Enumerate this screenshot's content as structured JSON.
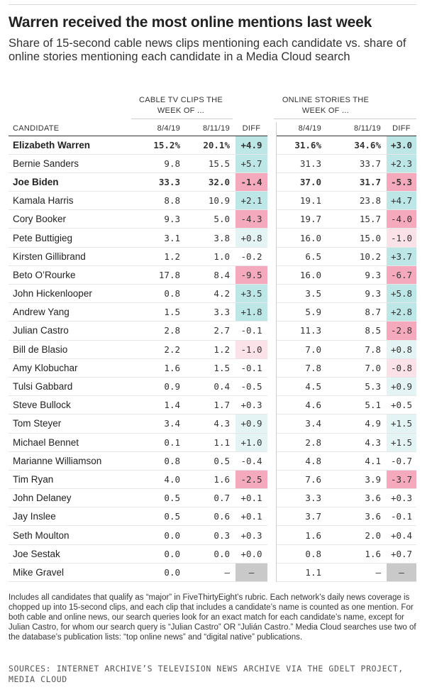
{
  "title": "Warren received the most online mentions last week",
  "subtitle": "Share of 15-second cable news clips mentioning each candidate vs. share of online stories mentioning each candidate in a Media Cloud search",
  "groups": {
    "cable": "CABLE TV CLIPS THE WEEK OF ...",
    "online": "ONLINE STORIES THE WEEK OF ..."
  },
  "columns": {
    "candidate": "CANDIDATE",
    "w1": "8/4/19",
    "w2": "8/11/19",
    "diff": "DIFF"
  },
  "colors": {
    "pos_strong": "#bde6e6",
    "pos_light": "#e4f4f4",
    "neg_strong": "#f4a9bd",
    "neg_light": "#fbe1e8",
    "na": "#c9c9c9"
  },
  "chart_data": {
    "type": "table",
    "rows": [
      {
        "name": "Elizabeth Warren",
        "bold": true,
        "cable": [
          "15.2%",
          "20.1%",
          "+4.9"
        ],
        "online": [
          "31.6%",
          "34.6%",
          "+3.0"
        ]
      },
      {
        "name": "Bernie Sanders",
        "bold": false,
        "cable": [
          "9.8",
          "15.5",
          "+5.7"
        ],
        "online": [
          "31.3",
          "33.7",
          "+2.3"
        ]
      },
      {
        "name": "Joe Biden",
        "bold": true,
        "cable": [
          "33.3",
          "32.0",
          "-1.4"
        ],
        "online": [
          "37.0",
          "31.7",
          "-5.3"
        ]
      },
      {
        "name": "Kamala Harris",
        "bold": false,
        "cable": [
          "8.8",
          "10.9",
          "+2.1"
        ],
        "online": [
          "19.1",
          "23.8",
          "+4.7"
        ]
      },
      {
        "name": "Cory Booker",
        "bold": false,
        "cable": [
          "9.3",
          "5.0",
          "-4.3"
        ],
        "online": [
          "19.7",
          "15.7",
          "-4.0"
        ]
      },
      {
        "name": "Pete Buttigieg",
        "bold": false,
        "cable": [
          "3.1",
          "3.8",
          "+0.8"
        ],
        "online": [
          "16.0",
          "15.0",
          "-1.0"
        ]
      },
      {
        "name": "Kirsten Gillibrand",
        "bold": false,
        "cable": [
          "1.2",
          "1.0",
          "-0.2"
        ],
        "online": [
          "6.5",
          "10.2",
          "+3.7"
        ]
      },
      {
        "name": "Beto O’Rourke",
        "bold": false,
        "cable": [
          "17.8",
          "8.4",
          "-9.5"
        ],
        "online": [
          "16.0",
          "9.3",
          "-6.7"
        ]
      },
      {
        "name": "John Hickenlooper",
        "bold": false,
        "cable": [
          "0.8",
          "4.2",
          "+3.5"
        ],
        "online": [
          "3.5",
          "9.3",
          "+5.8"
        ]
      },
      {
        "name": "Andrew Yang",
        "bold": false,
        "cable": [
          "1.5",
          "3.3",
          "+1.8"
        ],
        "online": [
          "5.9",
          "8.7",
          "+2.8"
        ]
      },
      {
        "name": "Julian Castro",
        "bold": false,
        "cable": [
          "2.8",
          "2.7",
          "-0.1"
        ],
        "online": [
          "11.3",
          "8.5",
          "-2.8"
        ]
      },
      {
        "name": "Bill de Blasio",
        "bold": false,
        "cable": [
          "2.2",
          "1.2",
          "-1.0"
        ],
        "online": [
          "7.0",
          "7.8",
          "+0.8"
        ]
      },
      {
        "name": "Amy Klobuchar",
        "bold": false,
        "cable": [
          "1.6",
          "1.5",
          "-0.1"
        ],
        "online": [
          "7.8",
          "7.0",
          "-0.8"
        ]
      },
      {
        "name": "Tulsi Gabbard",
        "bold": false,
        "cable": [
          "0.9",
          "0.4",
          "-0.5"
        ],
        "online": [
          "4.5",
          "5.3",
          "+0.9"
        ]
      },
      {
        "name": "Steve Bullock",
        "bold": false,
        "cable": [
          "1.4",
          "1.7",
          "+0.3"
        ],
        "online": [
          "4.6",
          "5.1",
          "+0.5"
        ]
      },
      {
        "name": "Tom Steyer",
        "bold": false,
        "cable": [
          "3.4",
          "4.3",
          "+0.9"
        ],
        "online": [
          "3.4",
          "4.9",
          "+1.5"
        ]
      },
      {
        "name": "Michael Bennet",
        "bold": false,
        "cable": [
          "0.1",
          "1.1",
          "+1.0"
        ],
        "online": [
          "2.8",
          "4.3",
          "+1.5"
        ]
      },
      {
        "name": "Marianne Williamson",
        "bold": false,
        "cable": [
          "0.8",
          "0.5",
          "-0.4"
        ],
        "online": [
          "4.8",
          "4.1",
          "-0.7"
        ]
      },
      {
        "name": "Tim Ryan",
        "bold": false,
        "cable": [
          "4.0",
          "1.6",
          "-2.5"
        ],
        "online": [
          "7.6",
          "3.9",
          "-3.7"
        ]
      },
      {
        "name": "John Delaney",
        "bold": false,
        "cable": [
          "0.5",
          "0.7",
          "+0.1"
        ],
        "online": [
          "3.3",
          "3.6",
          "+0.3"
        ]
      },
      {
        "name": "Jay Inslee",
        "bold": false,
        "cable": [
          "0.5",
          "0.6",
          "+0.1"
        ],
        "online": [
          "3.7",
          "3.6",
          "-0.1"
        ]
      },
      {
        "name": "Seth Moulton",
        "bold": false,
        "cable": [
          "0.0",
          "0.3",
          "+0.3"
        ],
        "online": [
          "1.6",
          "2.0",
          "+0.4"
        ]
      },
      {
        "name": "Joe Sestak",
        "bold": false,
        "cable": [
          "0.0",
          "0.0",
          "+0.0"
        ],
        "online": [
          "0.8",
          "1.6",
          "+0.7"
        ]
      },
      {
        "name": "Mike Gravel",
        "bold": false,
        "cable": [
          "0.0",
          "–",
          "–"
        ],
        "online": [
          "1.1",
          "–",
          "–"
        ]
      }
    ]
  },
  "note": "Includes all candidates that qualify as “major” in FiveThirtyEight’s rubric. Each network’s daily news coverage is chopped up into 15-second clips, and each clip that includes a candidate’s name is counted as one mention. For both cable and online news, our search queries look for an exact match for each candidate’s name, except for Julian Castro, for whom our search query is “Julian Castro” OR “Julián Castro.” Media Cloud searches use two of the database’s publication lists: “top online news” and “digital native” publications.",
  "sources": "SOURCES: INTERNET ARCHIVE’S TELEVISION NEWS ARCHIVE VIA THE GDELT PROJECT, MEDIA CLOUD"
}
